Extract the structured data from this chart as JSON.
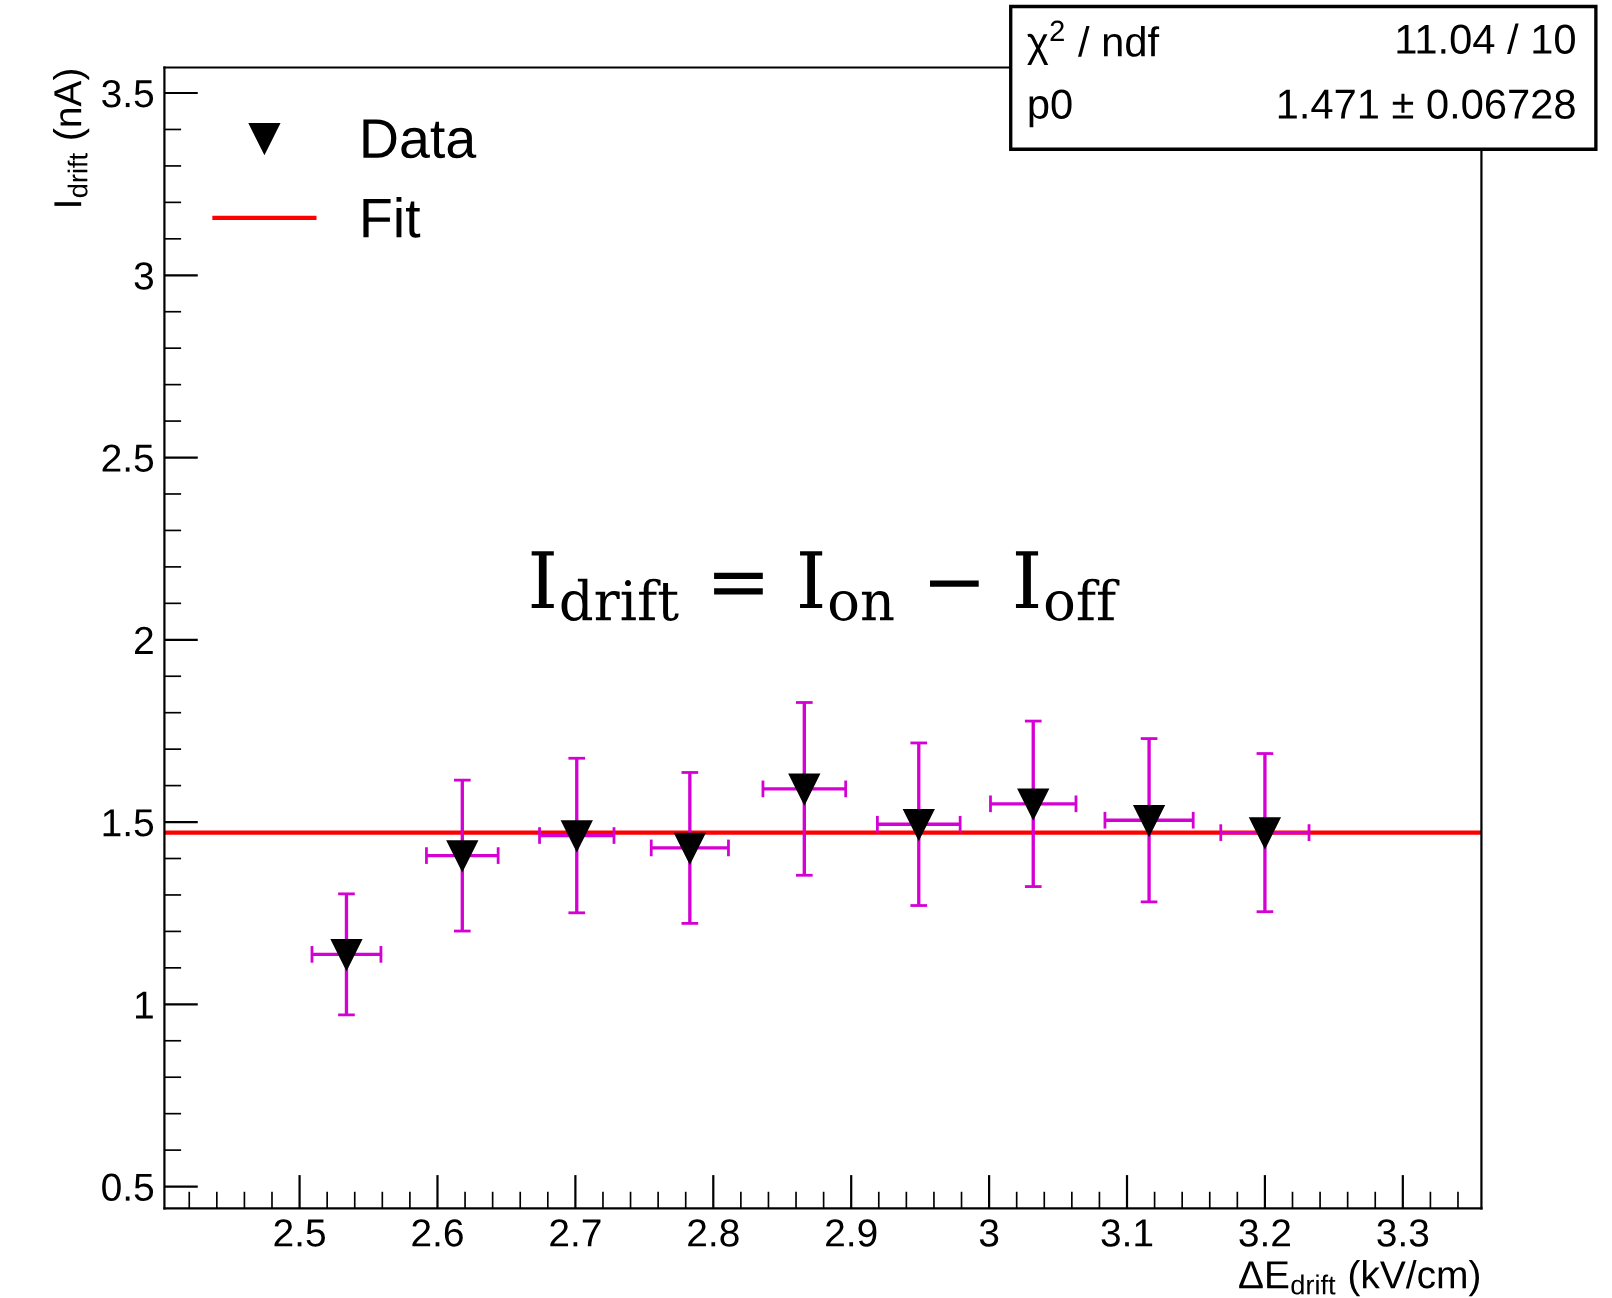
{
  "chart_data": {
    "type": "scatter",
    "xlabel": "ΔE$_{drift}$ (kV/cm)",
    "ylabel": "I$_{drift}$ (nA)",
    "xlim": [
      2.402,
      3.357
    ],
    "xticks": [
      2.5,
      2.6,
      2.7,
      2.8,
      2.9,
      3,
      3.1,
      3.2,
      3.3
    ],
    "ylim": [
      0.44,
      3.57
    ],
    "yticks": [
      0.5,
      1,
      1.5,
      2,
      2.5,
      3,
      3.5
    ],
    "grid": false,
    "legend": "top left",
    "series": [
      {
        "name": "Data",
        "marker": "triangle",
        "color": "#000000",
        "x": [
          2.534,
          2.618,
          2.701,
          2.783,
          2.866,
          2.949,
          3.032,
          3.116,
          3.2
        ],
        "values": [
          1.137,
          1.408,
          1.463,
          1.429,
          1.591,
          1.494,
          1.55,
          1.505,
          1.471
        ],
        "errors": [
          0.166,
          0.207,
          0.212,
          0.207,
          0.237,
          0.223,
          0.227,
          0.224,
          0.217
        ],
        "xerrors": [
          0.025,
          0.026,
          0.027,
          0.028,
          0.03,
          0.03,
          0.031,
          0.032,
          0.032
        ]
      },
      {
        "name": "Fit",
        "type": "line",
        "marker": "none",
        "color": "#ff0000",
        "x": [
          2.402,
          3.357
        ],
        "values": [
          1.471,
          1.471
        ]
      }
    ],
    "annotations": [
      "χ$^{2}$ / ndf",
      "11.04 / 10",
      "p0",
      "1.471 ± 0.06728",
      "I$_{drift}$ = I$_{on}$ − I$_{off}$"
    ]
  }
}
